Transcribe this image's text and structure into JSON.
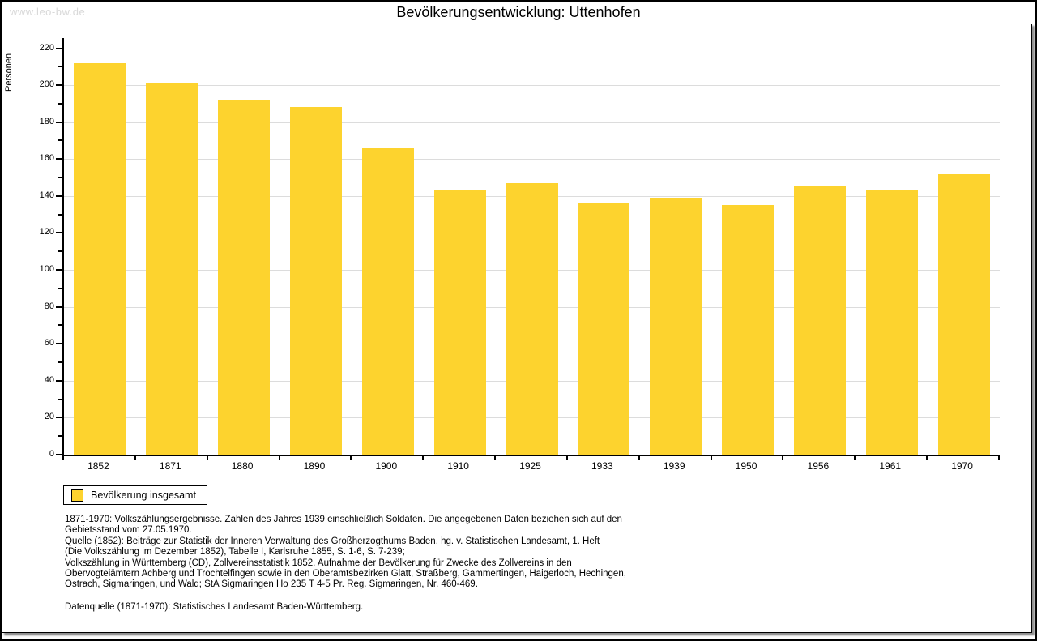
{
  "page": {
    "watermark": "www.leo-bw.de",
    "title": "Bevölkerungsentwicklung: Uttenhofen"
  },
  "chart_data": {
    "type": "bar",
    "title": "Bevölkerungsentwicklung: Uttenhofen",
    "xlabel": "",
    "ylabel": "Personen",
    "categories": [
      "1852",
      "1871",
      "1880",
      "1890",
      "1900",
      "1910",
      "1925",
      "1933",
      "1939",
      "1950",
      "1956",
      "1961",
      "1970"
    ],
    "values": [
      212,
      201,
      192,
      188,
      166,
      143,
      147,
      136,
      139,
      135,
      145,
      143,
      152
    ],
    "ylim": [
      0,
      220
    ],
    "ytick_step": 20,
    "minor_tick_step": 10,
    "grid": true,
    "legend_position": "bottom-left",
    "legend": [
      {
        "label": "Bevölkerung insgesamt",
        "color": "#fdd32e"
      }
    ]
  },
  "footnotes": {
    "block1_lines": [
      "1871-1970: Volkszählungsergebnisse. Zahlen des Jahres 1939 einschließlich Soldaten. Die angegebenen Daten beziehen sich auf den",
      "Gebietsstand vom 27.05.1970.",
      "Quelle (1852): Beiträge zur Statistik der Inneren Verwaltung des Großherzogthums Baden, hg. v. Statistischen Landesamt, 1. Heft",
      "(Die Volkszählung im Dezember 1852), Tabelle I, Karlsruhe 1855, S. 1-6, S. 7-239;",
      "Volkszählung in Württemberg (CD), Zollvereinsstatistik 1852. Aufnahme der Bevölkerung für Zwecke des Zollvereins in den",
      "Obervogteiämtern Achberg und Trochtelfingen sowie in den Oberamtsbezirken Glatt, Straßberg, Gammertingen, Haigerloch, Hechingen,",
      "Ostrach, Sigmaringen, und Wald; StA Sigmaringen Ho 235 T 4-5 Pr. Reg. Sigmaringen, Nr. 460-469."
    ],
    "block2_lines": [
      "Datenquelle (1871-1970): Statistisches Landesamt Baden-Württemberg."
    ]
  },
  "colors": {
    "bar": "#fdd32e",
    "gridline": "#dcdcdc",
    "axis": "#000000",
    "watermark": "#d9d9d9",
    "frame_shadow": "#8f8f8f"
  }
}
